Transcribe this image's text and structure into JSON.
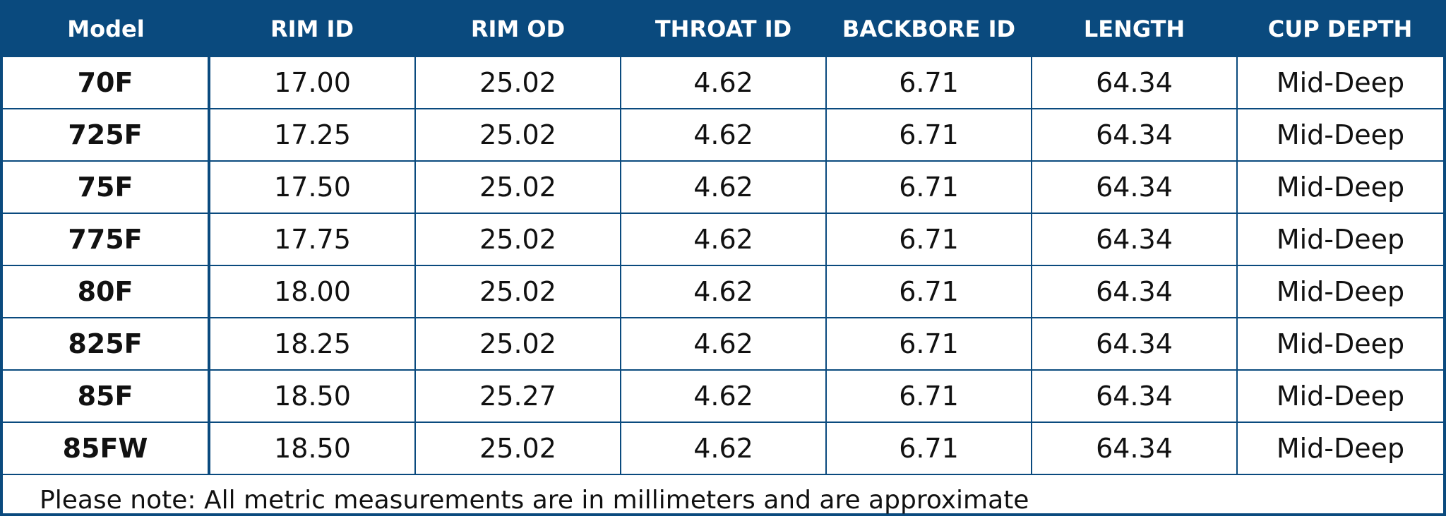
{
  "chart_data": {
    "type": "table",
    "columns": [
      "Model",
      "RIM ID",
      "RIM OD",
      "THROAT ID",
      "BACKBORE ID",
      "LENGTH",
      "CUP DEPTH"
    ],
    "rows": [
      [
        "70F",
        "17.00",
        "25.02",
        "4.62",
        "6.71",
        "64.34",
        "Mid-Deep"
      ],
      [
        "725F",
        "17.25",
        "25.02",
        "4.62",
        "6.71",
        "64.34",
        "Mid-Deep"
      ],
      [
        "75F",
        "17.50",
        "25.02",
        "4.62",
        "6.71",
        "64.34",
        "Mid-Deep"
      ],
      [
        "775F",
        "17.75",
        "25.02",
        "4.62",
        "6.71",
        "64.34",
        "Mid-Deep"
      ],
      [
        "80F",
        "18.00",
        "25.02",
        "4.62",
        "6.71",
        "64.34",
        "Mid-Deep"
      ],
      [
        "825F",
        "18.25",
        "25.02",
        "4.62",
        "6.71",
        "64.34",
        "Mid-Deep"
      ],
      [
        "85F",
        "18.50",
        "25.27",
        "4.62",
        "6.71",
        "64.34",
        "Mid-Deep"
      ],
      [
        "85FW",
        "18.50",
        "25.02",
        "4.62",
        "6.71",
        "64.34",
        "Mid-Deep"
      ]
    ],
    "note": "Please note: All metric measurements are in millimeters and are approximate"
  },
  "colors": {
    "header_background": "#0a4a7e",
    "header_text": "#ffffff",
    "border": "#0a4a7e",
    "body_text": "#111111"
  }
}
